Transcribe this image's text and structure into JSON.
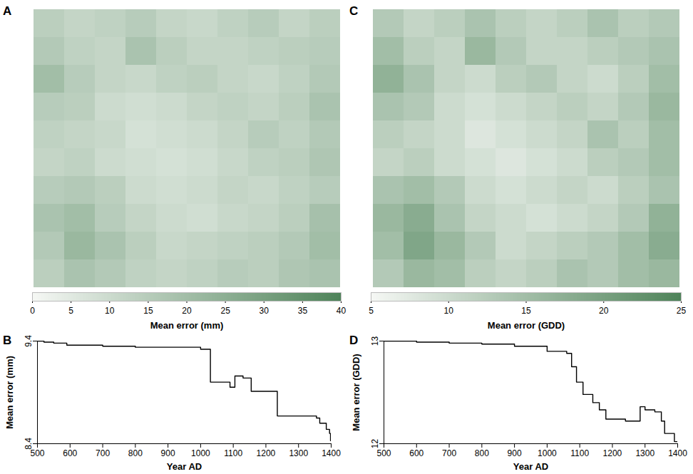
{
  "chart_data": [
    {
      "type": "heatmap",
      "panel": "A",
      "tick_labels": false,
      "cells": [
        [
          14,
          12,
          13,
          15,
          12,
          11,
          13,
          15,
          12,
          14
        ],
        [
          16,
          13,
          12,
          18,
          14,
          12,
          12,
          13,
          14,
          15
        ],
        [
          20,
          15,
          12,
          11,
          13,
          14,
          12,
          11,
          13,
          16
        ],
        [
          15,
          14,
          10,
          9,
          10,
          12,
          13,
          12,
          14,
          18
        ],
        [
          13,
          12,
          11,
          8,
          9,
          10,
          12,
          15,
          13,
          16
        ],
        [
          12,
          13,
          10,
          9,
          8,
          9,
          11,
          13,
          14,
          17
        ],
        [
          15,
          16,
          14,
          10,
          9,
          10,
          12,
          11,
          13,
          15
        ],
        [
          18,
          20,
          15,
          12,
          10,
          9,
          11,
          12,
          14,
          19
        ],
        [
          16,
          22,
          18,
          14,
          11,
          12,
          13,
          14,
          16,
          20
        ],
        [
          14,
          18,
          16,
          13,
          12,
          13,
          15,
          14,
          17,
          18
        ]
      ],
      "colorbar": {
        "label": "Mean error (mm)",
        "range": [
          0,
          40
        ],
        "ticks": [
          0,
          5,
          10,
          15,
          20,
          25,
          30,
          35,
          40
        ]
      }
    },
    {
      "type": "line",
      "panel": "B",
      "line_style": "step",
      "color": "#000000",
      "x": [
        500,
        520,
        550,
        590,
        700,
        800,
        1000,
        1030,
        1090,
        1105,
        1130,
        1155,
        1235,
        1355,
        1365,
        1385,
        1395,
        1398,
        1400
      ],
      "values": [
        9.4,
        9.39,
        9.38,
        9.36,
        9.35,
        9.34,
        9.32,
        9.0,
        8.95,
        9.06,
        9.04,
        8.91,
        8.67,
        8.65,
        8.6,
        8.54,
        8.5,
        8.43,
        8.43
      ],
      "xlim": [
        500,
        1400
      ],
      "xticks": [
        500,
        600,
        700,
        800,
        900,
        1000,
        1100,
        1200,
        1300,
        1400
      ],
      "ylim": [
        8.4,
        9.4
      ],
      "yticks": [
        8.4,
        9.4
      ],
      "xlabel": "Year AD",
      "ylabel": "Mean error (mm)"
    },
    {
      "type": "heatmap",
      "panel": "C",
      "tick_labels": false,
      "cells": [
        [
          13,
          11,
          12,
          14,
          12,
          11,
          12,
          14,
          12,
          13
        ],
        [
          15,
          12,
          11,
          16,
          13,
          11,
          11,
          12,
          13,
          14
        ],
        [
          17,
          14,
          11,
          10,
          12,
          13,
          11,
          10,
          12,
          15
        ],
        [
          14,
          13,
          10,
          9,
          10,
          11,
          12,
          11,
          13,
          16
        ],
        [
          12,
          11,
          10,
          8,
          9,
          10,
          11,
          14,
          12,
          15
        ],
        [
          11,
          12,
          10,
          9,
          8,
          9,
          10,
          12,
          13,
          15
        ],
        [
          14,
          15,
          13,
          10,
          9,
          10,
          11,
          10,
          12,
          14
        ],
        [
          16,
          18,
          14,
          11,
          10,
          9,
          10,
          11,
          13,
          17
        ],
        [
          15,
          19,
          16,
          13,
          10,
          11,
          12,
          13,
          15,
          18
        ],
        [
          13,
          16,
          15,
          12,
          11,
          12,
          14,
          13,
          15,
          16
        ]
      ],
      "colorbar": {
        "label": "Mean error (GDD)",
        "range": [
          5,
          25
        ],
        "ticks": [
          5,
          10,
          15,
          20,
          25
        ]
      }
    },
    {
      "type": "line",
      "panel": "D",
      "line_style": "step",
      "color": "#000000",
      "x": [
        500,
        600,
        700,
        800,
        900,
        1000,
        1060,
        1075,
        1090,
        1110,
        1140,
        1160,
        1180,
        1240,
        1285,
        1300,
        1330,
        1350,
        1360,
        1390,
        1400
      ],
      "values": [
        13.0,
        12.99,
        12.98,
        12.97,
        12.95,
        12.9,
        12.88,
        12.75,
        12.6,
        12.48,
        12.4,
        12.33,
        12.24,
        12.22,
        12.36,
        12.33,
        12.31,
        12.22,
        12.1,
        12.02,
        12.02
      ],
      "xlim": [
        500,
        1400
      ],
      "xticks": [
        500,
        600,
        700,
        800,
        900,
        1000,
        1100,
        1200,
        1300,
        1400
      ],
      "ylim": [
        12,
        13
      ],
      "yticks": [
        12,
        13
      ],
      "xlabel": "Year AD",
      "ylabel": "Mean error (GDD)"
    }
  ]
}
